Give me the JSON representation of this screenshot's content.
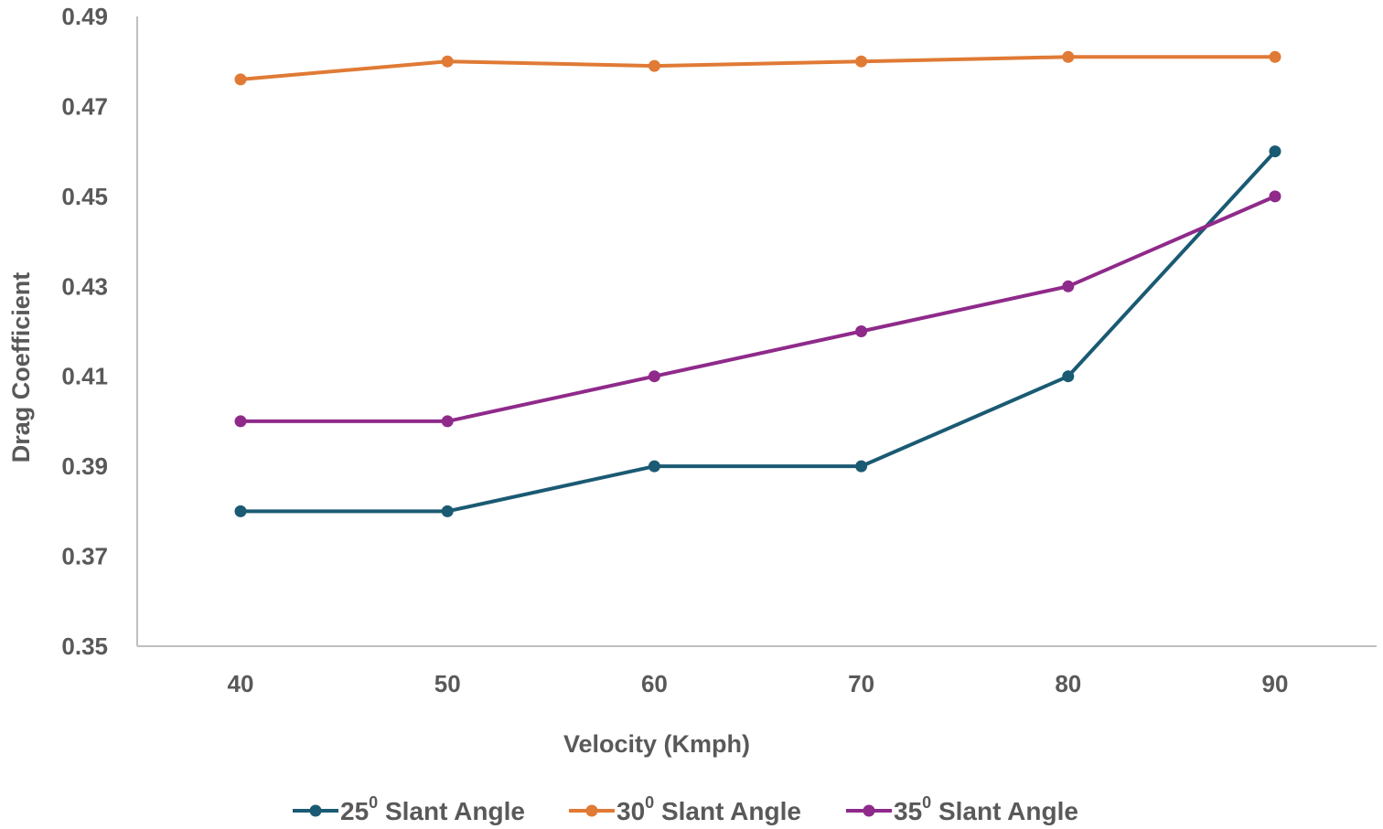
{
  "chart_data": {
    "type": "line",
    "title": "",
    "xlabel": "Velocity (Kmph)",
    "ylabel": "Drag Coefficient",
    "categories": [
      "40",
      "50",
      "60",
      "70",
      "80",
      "90"
    ],
    "x": [
      40,
      50,
      60,
      70,
      80,
      90
    ],
    "y_ticks": [
      "0.35",
      "0.37",
      "0.39",
      "0.41",
      "0.43",
      "0.45",
      "0.47",
      "0.49"
    ],
    "ylim": [
      0.35,
      0.49
    ],
    "grid": false,
    "legend_position": "bottom",
    "series": [
      {
        "name_prefix": "25",
        "name_sup": "0",
        "name_suffix": " Slant Angle",
        "color": "#1a5a73",
        "values": [
          0.38,
          0.38,
          0.39,
          0.39,
          0.41,
          0.46
        ]
      },
      {
        "name_prefix": "30",
        "name_sup": "0",
        "name_suffix": " Slant Angle",
        "color": "#e07a35",
        "values": [
          0.476,
          0.48,
          0.479,
          0.48,
          0.481,
          0.481
        ]
      },
      {
        "name_prefix": "35",
        "name_sup": "0",
        "name_suffix": " Slant Angle",
        "color": "#8f2a8a",
        "values": [
          0.4,
          0.4,
          0.41,
          0.42,
          0.43,
          0.45
        ]
      }
    ]
  }
}
